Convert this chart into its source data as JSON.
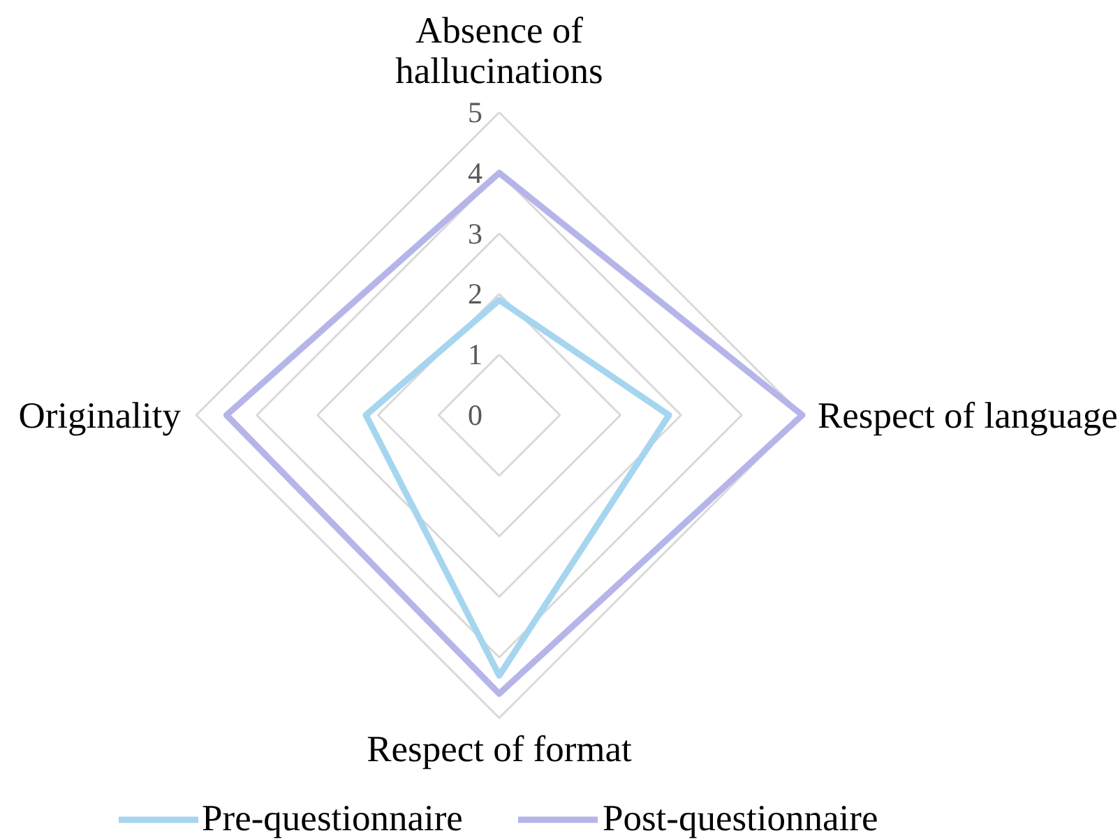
{
  "chart_data": {
    "type": "radar",
    "categories": [
      "Absence of hallucinations",
      "Respect of language",
      "Respect of format",
      "Originality"
    ],
    "series": [
      {
        "name": "Pre-questionnaire",
        "color": "#a6d5ef",
        "values": [
          1.9,
          2.8,
          4.3,
          2.2
        ]
      },
      {
        "name": "Post-questionnaire",
        "color": "#b5b5e9",
        "values": [
          4,
          5,
          4.6,
          4.5
        ]
      }
    ],
    "ylim": [
      0,
      5
    ],
    "yticks": [
      0,
      1,
      2,
      3,
      4,
      5
    ],
    "grid": true,
    "legend": "bottom",
    "line_style": "solid"
  }
}
